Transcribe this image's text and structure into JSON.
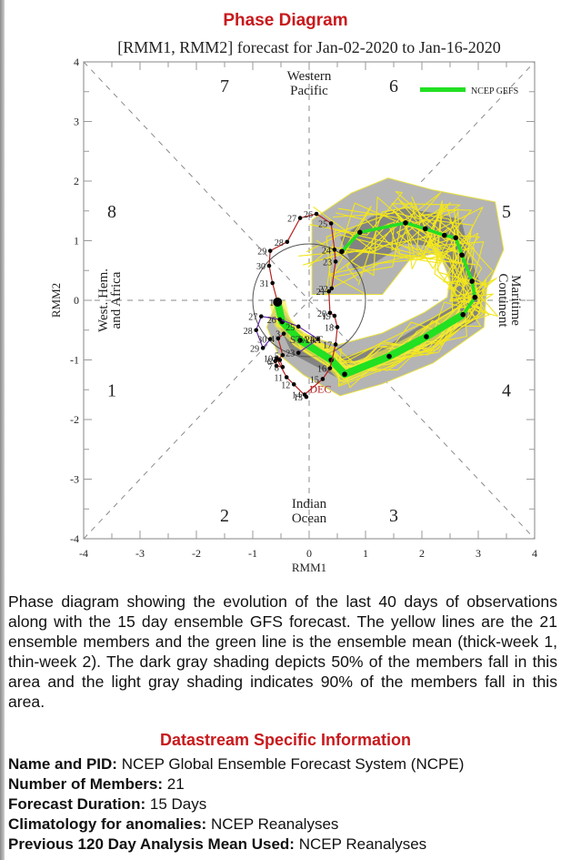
{
  "page": {
    "title": "Phase Diagram",
    "caption": "Phase diagram showing the evolution of the last 40 days of observations along with the 15 day ensemble GFS forecast. The yellow lines are the 21 ensemble members and the green line is the ensemble mean (thick-week 1, thin-week 2). The dark gray shading depicts 50% of the members fall in this area and the light gray shading indicates 90% of the members fall in this area.",
    "section_title": "Datastream Specific Information",
    "info": [
      {
        "label": "Name and PID:",
        "value": "NCEP Global Ensemble Forecast System (NCPE)"
      },
      {
        "label": "Number of Members:",
        "value": "21"
      },
      {
        "label": "Forecast Duration:",
        "value": "15 Days"
      },
      {
        "label": "Climatology for anomalies:",
        "value": "NCEP Reanalyses"
      },
      {
        "label": "Previous 120 Day Analysis Mean Used:",
        "value": "NCEP Reanalyses"
      }
    ]
  },
  "chart_data": {
    "type": "line",
    "title": "[RMM1, RMM2] forecast for Jan-02-2020 to Jan-16-2020",
    "xlabel": "RMM1",
    "ylabel": "RMM2",
    "xlim": [
      -4,
      4
    ],
    "ylim": [
      -4,
      4
    ],
    "x_ticks": [
      "-4",
      "-3",
      "-2",
      "-1",
      "0",
      "1",
      "2",
      "3",
      "4"
    ],
    "y_ticks": [
      "4",
      "3",
      "2",
      "1",
      "0",
      "-1",
      "-2",
      "-3",
      "-4"
    ],
    "legend": {
      "label": "NCEP GEFS",
      "color": "#22e022",
      "placement": "top-right"
    },
    "phase_labels": [
      {
        "text": "1",
        "x": -3.5,
        "y": -1.5
      },
      {
        "text": "2",
        "x": -1.5,
        "y": -3.6
      },
      {
        "text": "3",
        "x": 1.5,
        "y": -3.6
      },
      {
        "text": "4",
        "x": 3.5,
        "y": -1.5
      },
      {
        "text": "5",
        "x": 3.5,
        "y": 1.5
      },
      {
        "text": "6",
        "x": 1.5,
        "y": 3.6
      },
      {
        "text": "7",
        "x": -1.5,
        "y": 3.6
      },
      {
        "text": "8",
        "x": -3.5,
        "y": 1.5
      }
    ],
    "region_labels": {
      "top": [
        "Western",
        "Pacific"
      ],
      "bottom": [
        "Indian",
        "Ocean"
      ],
      "left": [
        "West. Hem.",
        "and Africa"
      ],
      "right": [
        "Maritime",
        "Continent"
      ]
    },
    "unit_circle_radius": 1,
    "observed_november": {
      "color": "#6a2fb0",
      "points": [
        {
          "label": "23",
          "x": -0.19,
          "y": -0.88
        },
        {
          "label": "24",
          "x": 0.16,
          "y": -0.65
        },
        {
          "label": "25",
          "x": -0.19,
          "y": -0.44
        },
        {
          "label": "26",
          "x": -0.52,
          "y": -0.32
        },
        {
          "label": "27",
          "x": -0.85,
          "y": -0.27
        },
        {
          "label": "28",
          "x": -0.94,
          "y": -0.5
        },
        {
          "label": "29",
          "x": -0.82,
          "y": -0.8
        },
        {
          "label": "30",
          "x": -0.69,
          "y": -0.65
        }
      ]
    },
    "observed_december": {
      "color": "#b52020",
      "month_label": "DEC",
      "points": [
        {
          "label": "3",
          "x": -0.45,
          "y": -0.56
        },
        {
          "label": "4",
          "x": -0.55,
          "y": -0.64
        },
        {
          "label": "5",
          "x": -0.47,
          "y": -0.92
        },
        {
          "label": "6",
          "x": -0.6,
          "y": -1.02
        },
        {
          "label": "7",
          "x": -0.58,
          "y": -1.1
        },
        {
          "label": "8",
          "x": -0.47,
          "y": -1.12
        },
        {
          "label": "9",
          "x": -0.52,
          "y": -1.0
        },
        {
          "label": "10",
          "x": -0.58,
          "y": -0.97
        },
        {
          "label": "11",
          "x": -0.4,
          "y": -1.29
        },
        {
          "label": "12",
          "x": -0.27,
          "y": -1.41
        },
        {
          "label": "13",
          "x": -0.05,
          "y": -1.62
        },
        {
          "label": "14",
          "x": -0.08,
          "y": -1.58
        },
        {
          "label": "15",
          "x": 0.24,
          "y": -1.32
        },
        {
          "label": "16",
          "x": 0.37,
          "y": -1.14
        },
        {
          "label": "17",
          "x": 0.47,
          "y": -0.74
        },
        {
          "label": "18",
          "x": 0.5,
          "y": -0.45
        },
        {
          "label": "19",
          "x": 0.45,
          "y": -0.26
        },
        {
          "label": "20",
          "x": 0.37,
          "y": -0.21
        },
        {
          "label": "21",
          "x": 0.35,
          "y": 0.15
        },
        {
          "label": "22",
          "x": 0.4,
          "y": 0.2
        },
        {
          "label": "23",
          "x": 0.47,
          "y": 0.65
        },
        {
          "label": "24",
          "x": 0.45,
          "y": 0.85
        },
        {
          "label": "25",
          "x": 0.39,
          "y": 1.29
        },
        {
          "label": "26",
          "x": 0.13,
          "y": 1.45
        },
        {
          "label": "27",
          "x": -0.16,
          "y": 1.38
        },
        {
          "label": "28",
          "x": -0.39,
          "y": 0.98
        },
        {
          "label": "29",
          "x": -0.69,
          "y": 0.83
        },
        {
          "label": "30",
          "x": -0.71,
          "y": 0.58
        },
        {
          "label": "31",
          "x": -0.65,
          "y": 0.29
        },
        {
          "label": "1",
          "x": -0.56,
          "y": -0.03
        }
      ]
    },
    "ensemble_mean": {
      "color": "#22e022",
      "week1": [
        {
          "x": -0.56,
          "y": -0.03
        },
        {
          "x": -0.48,
          "y": -0.36
        },
        {
          "x": -0.16,
          "y": -0.67
        },
        {
          "x": 0.39,
          "y": -1.0
        },
        {
          "x": 0.63,
          "y": -1.24
        },
        {
          "x": 1.42,
          "y": -0.94
        },
        {
          "x": 2.08,
          "y": -0.61
        },
        {
          "x": 2.73,
          "y": -0.24
        }
      ],
      "week2": [
        {
          "x": 2.73,
          "y": -0.24
        },
        {
          "x": 2.94,
          "y": 0.05
        },
        {
          "x": 2.89,
          "y": 0.32
        },
        {
          "x": 2.71,
          "y": 0.76
        },
        {
          "x": 2.6,
          "y": 1.05
        },
        {
          "x": 2.4,
          "y": 1.09
        },
        {
          "x": 2.06,
          "y": 1.2
        },
        {
          "x": 1.71,
          "y": 1.3
        },
        {
          "x": 0.9,
          "y": 1.14
        },
        {
          "x": 0.58,
          "y": 0.82
        }
      ]
    },
    "ensemble_members": 21,
    "shading": {
      "p50_color": "#7a7a7a",
      "p90_color": "#b4b4b4",
      "p50": [
        {
          "x": 0.55,
          "y": 1.05
        },
        {
          "x": 1.1,
          "y": 1.4
        },
        {
          "x": 1.65,
          "y": 1.55
        },
        {
          "x": 2.3,
          "y": 1.45
        },
        {
          "x": 2.7,
          "y": 1.35
        },
        {
          "x": 2.85,
          "y": 0.75
        },
        {
          "x": 3.1,
          "y": 0.1
        },
        {
          "x": 2.95,
          "y": -0.35
        },
        {
          "x": 2.2,
          "y": -0.75
        },
        {
          "x": 1.4,
          "y": -1.1
        },
        {
          "x": 0.6,
          "y": -1.35
        },
        {
          "x": -0.3,
          "y": -0.9
        },
        {
          "x": -0.55,
          "y": -0.4
        },
        {
          "x": -0.5,
          "y": -0.2
        },
        {
          "x": 0.1,
          "y": -0.75
        },
        {
          "x": 0.6,
          "y": -0.95
        },
        {
          "x": 1.4,
          "y": -0.75
        },
        {
          "x": 2.1,
          "y": -0.35
        },
        {
          "x": 2.55,
          "y": -0.1
        },
        {
          "x": 2.5,
          "y": 0.5
        },
        {
          "x": 2.3,
          "y": 0.9
        },
        {
          "x": 1.7,
          "y": 0.95
        },
        {
          "x": 1.2,
          "y": 0.65
        },
        {
          "x": 0.8,
          "y": 0.5
        }
      ],
      "p90": [
        {
          "x": 0.05,
          "y": 1.35
        },
        {
          "x": 0.75,
          "y": 1.8
        },
        {
          "x": 1.4,
          "y": 2.05
        },
        {
          "x": 2.2,
          "y": 1.85
        },
        {
          "x": 3.3,
          "y": 1.65
        },
        {
          "x": 3.45,
          "y": 0.85
        },
        {
          "x": 3.15,
          "y": 0.2
        },
        {
          "x": 3.1,
          "y": -0.45
        },
        {
          "x": 2.2,
          "y": -1.05
        },
        {
          "x": 1.3,
          "y": -1.4
        },
        {
          "x": 0.55,
          "y": -1.6
        },
        {
          "x": -0.1,
          "y": -1.25
        },
        {
          "x": -0.55,
          "y": -0.9
        },
        {
          "x": -0.75,
          "y": -0.45
        },
        {
          "x": -0.55,
          "y": 0.05
        },
        {
          "x": -0.2,
          "y": -0.55
        },
        {
          "x": 0.5,
          "y": -0.75
        },
        {
          "x": 1.3,
          "y": -0.55
        },
        {
          "x": 2.05,
          "y": -0.2
        },
        {
          "x": 2.45,
          "y": 0.05
        },
        {
          "x": 2.5,
          "y": 0.35
        },
        {
          "x": 2.3,
          "y": 0.8
        },
        {
          "x": 1.8,
          "y": 0.7
        },
        {
          "x": 1.3,
          "y": 0.1
        },
        {
          "x": 0.05,
          "y": 0.1
        }
      ]
    }
  }
}
